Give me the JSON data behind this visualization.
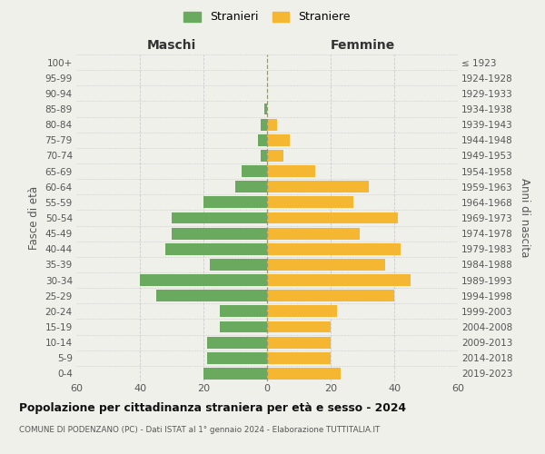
{
  "age_groups_bottom_to_top": [
    "0-4",
    "5-9",
    "10-14",
    "15-19",
    "20-24",
    "25-29",
    "30-34",
    "35-39",
    "40-44",
    "45-49",
    "50-54",
    "55-59",
    "60-64",
    "65-69",
    "70-74",
    "75-79",
    "80-84",
    "85-89",
    "90-94",
    "95-99",
    "100+"
  ],
  "birth_years_bottom_to_top": [
    "2019-2023",
    "2014-2018",
    "2009-2013",
    "2004-2008",
    "1999-2003",
    "1994-1998",
    "1989-1993",
    "1984-1988",
    "1979-1983",
    "1974-1978",
    "1969-1973",
    "1964-1968",
    "1959-1963",
    "1954-1958",
    "1949-1953",
    "1944-1948",
    "1939-1943",
    "1934-1938",
    "1929-1933",
    "1924-1928",
    "≤ 1923"
  ],
  "males_bottom_to_top": [
    20,
    19,
    19,
    15,
    15,
    35,
    40,
    18,
    32,
    30,
    30,
    20,
    10,
    8,
    2,
    3,
    2,
    1,
    0,
    0,
    0
  ],
  "females_bottom_to_top": [
    23,
    20,
    20,
    20,
    22,
    40,
    45,
    37,
    42,
    29,
    41,
    27,
    32,
    15,
    5,
    7,
    3,
    0,
    0,
    0,
    0
  ],
  "male_color": "#6aaa5f",
  "female_color": "#f5b731",
  "background_color": "#f0f0eb",
  "grid_color": "#cccccc",
  "center_line_color": "#999977",
  "xlim": 60,
  "xticks": [
    60,
    40,
    20,
    0,
    20,
    40,
    60
  ],
  "title": "Popolazione per cittadinanza straniera per età e sesso - 2024",
  "subtitle": "COMUNE DI PODENZANO (PC) - Dati ISTAT al 1° gennaio 2024 - Elaborazione TUTTITALIA.IT",
  "xlabel_left": "Maschi",
  "xlabel_right": "Femmine",
  "ylabel_left": "Fasce di età",
  "ylabel_right": "Anni di nascita",
  "legend_stranieri": "Stranieri",
  "legend_straniere": "Straniere",
  "bar_height": 0.75
}
